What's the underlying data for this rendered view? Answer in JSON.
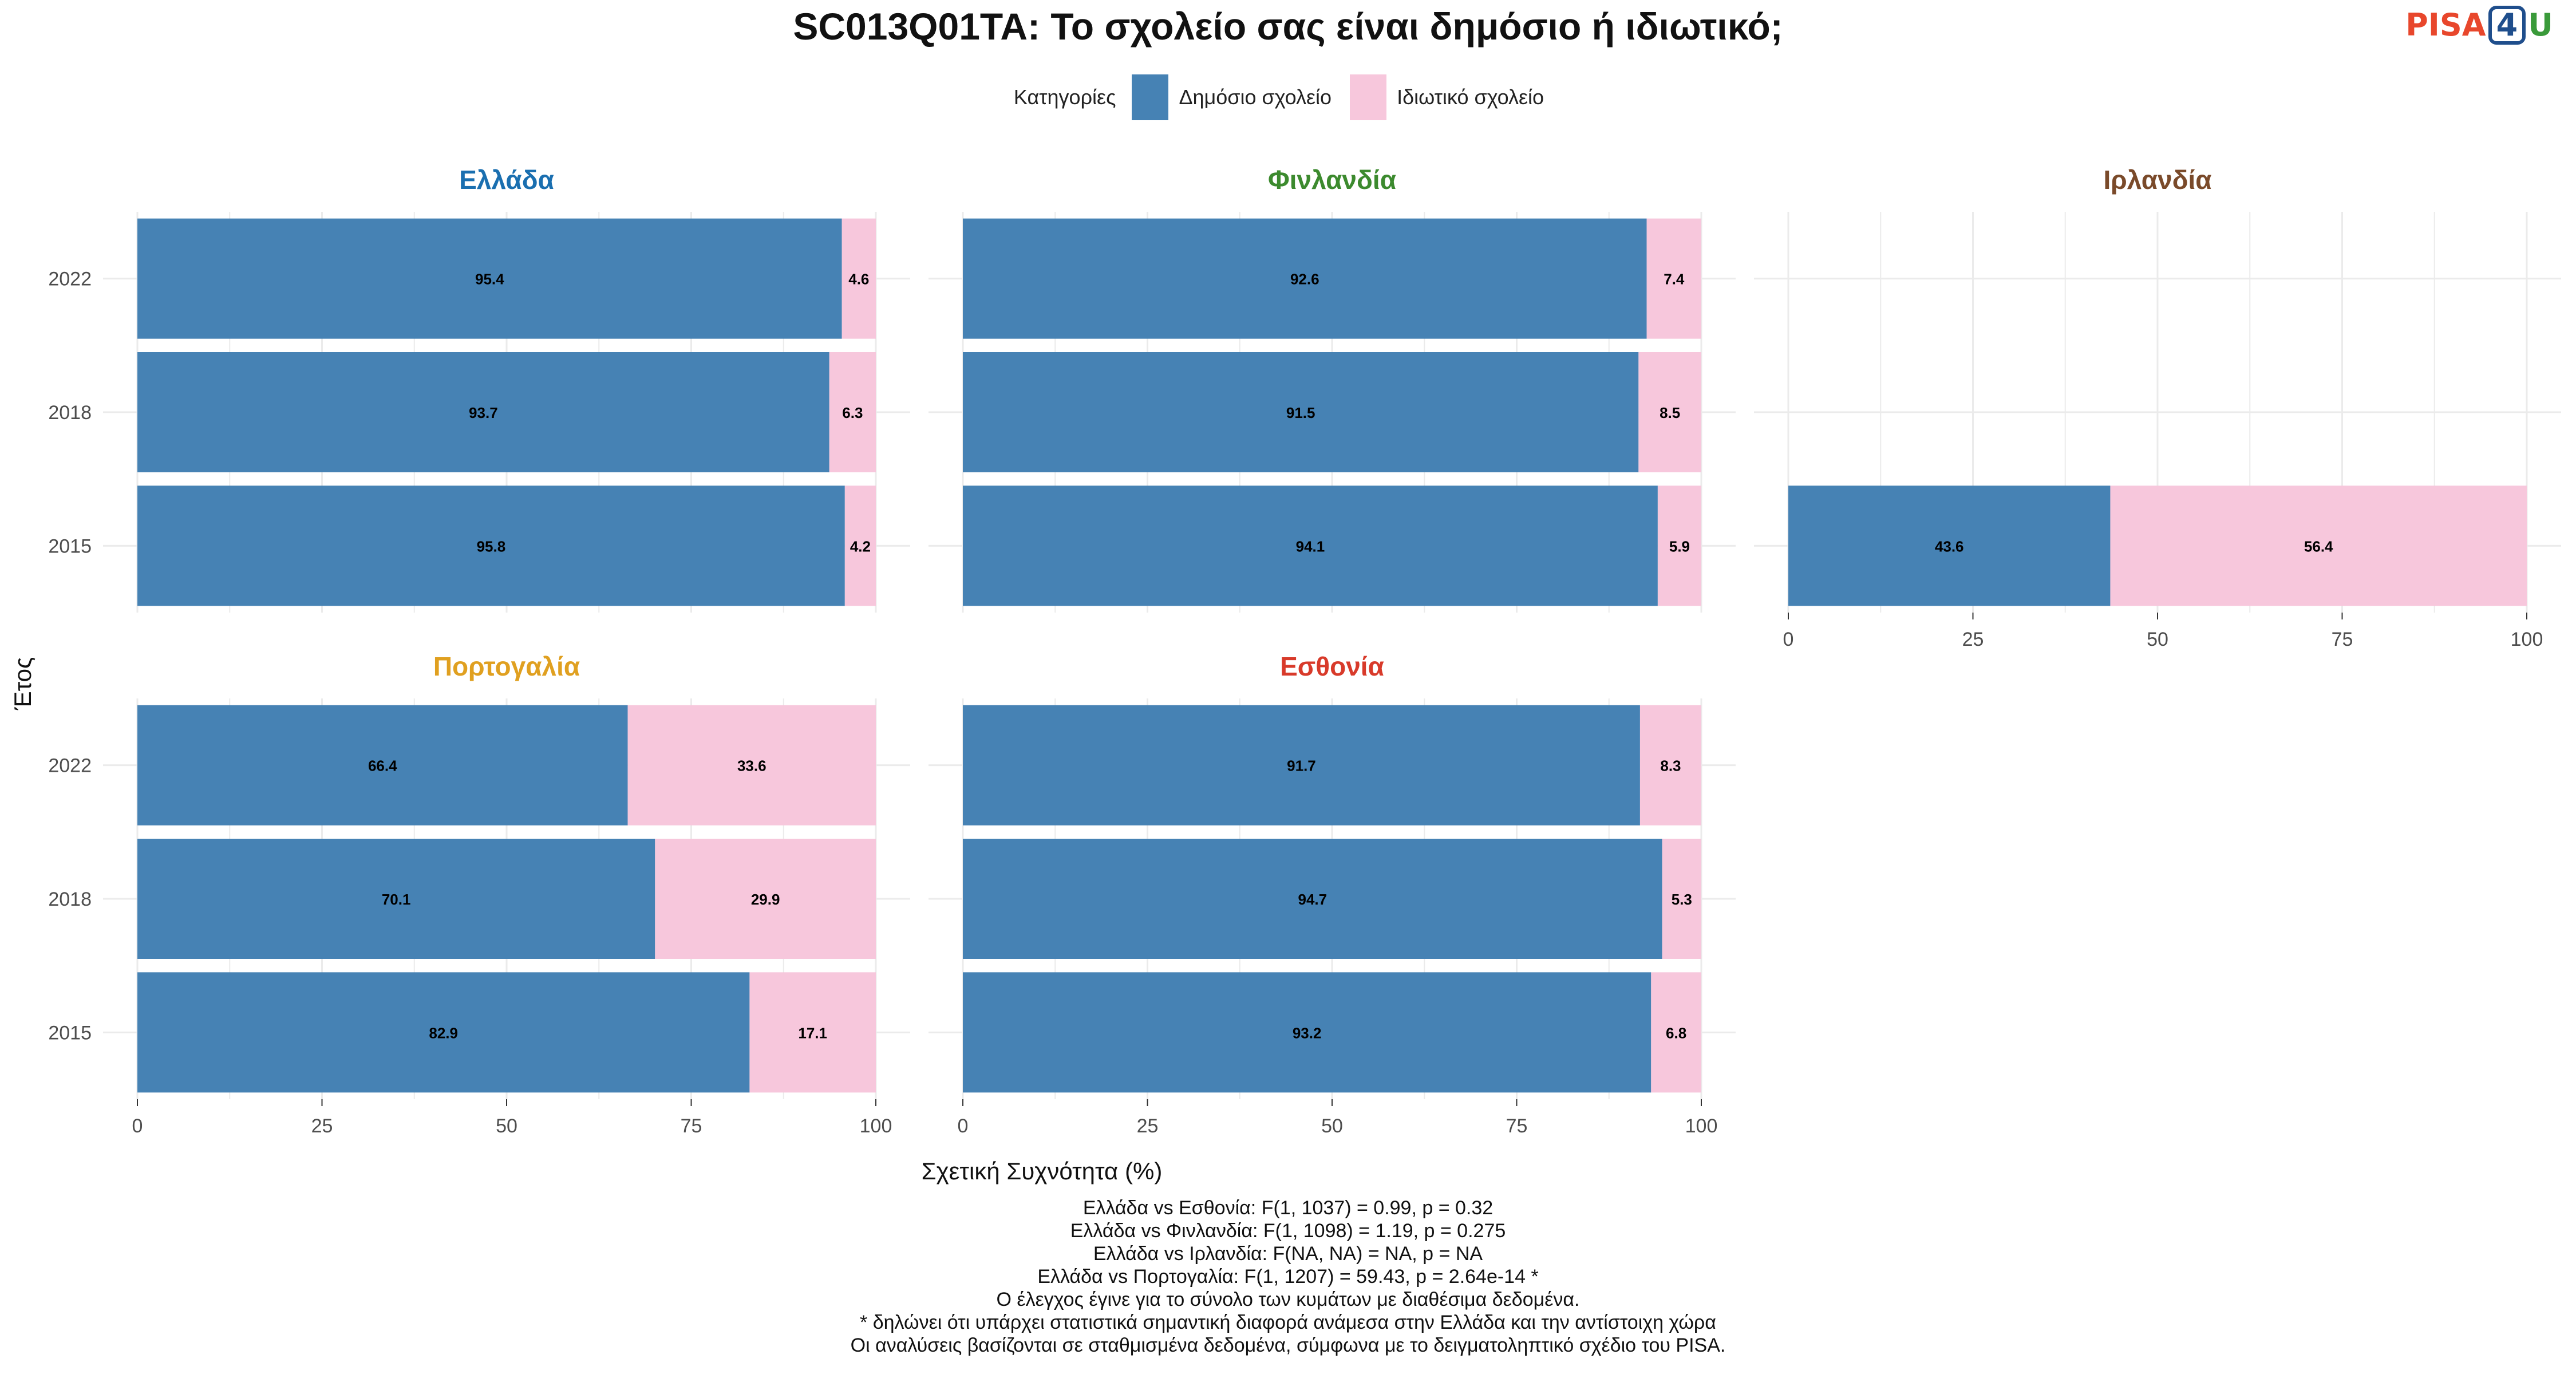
{
  "title": "SC013Q01TA: Το σχολείο σας είναι δημόσιο ή ιδιωτικό;",
  "logo": {
    "part1": "PISA",
    "part2": "4",
    "part3": "U"
  },
  "legend": {
    "title": "Κατηγορίες",
    "items": [
      {
        "label": "Δημόσιο σχολείο",
        "color": "#4682b4"
      },
      {
        "label": "Ιδιωτικό σχολείο",
        "color": "#f7c7dc"
      }
    ]
  },
  "xlabel": "Σχετική Συχνότητα (%)",
  "ylabel": "Έτος",
  "notes": [
    "Ελλάδα vs Εσθονία: F(1, 1037) = 0.99, p = 0.32",
    "Ελλάδα vs Φινλανδία: F(1, 1098) = 1.19, p = 0.275",
    "Ελλάδα vs Ιρλανδία: F(NA, NA) = NA, p = NA",
    "Ελλάδα vs Πορτογαλία: F(1, 1207) = 59.43, p = 2.64e-14 *",
    "Ο έλεγχος έγινε για το σύνολο των κυμάτων με διαθέσιμα δεδομένα.",
    "* δηλώνει ότι υπάρχει στατιστικά σημαντική διαφορά ανάμεσα στην Ελλάδα και την αντίστοιχη χώρα",
    "Οι αναλύσεις βασίζονται σε σταθμισμένα δεδομένα, σύμφωνα με το δειγματοληπτικό σχέδιο του PISA."
  ],
  "chart_data": {
    "type": "bar",
    "orientation": "horizontal-stacked",
    "xlim": [
      0,
      100
    ],
    "xticks": [
      0,
      25,
      50,
      75,
      100
    ],
    "years": [
      "2022",
      "2018",
      "2015"
    ],
    "series_names": [
      "Δημόσιο σχολείο",
      "Ιδιωτικό σχολείο"
    ],
    "panels": [
      {
        "country": "Ελλάδα",
        "color": "#1a6fb0",
        "bars": [
          {
            "year": "2022",
            "values": [
              95.4,
              4.6
            ]
          },
          {
            "year": "2018",
            "values": [
              93.7,
              6.3
            ]
          },
          {
            "year": "2015",
            "values": [
              95.8,
              4.2
            ]
          }
        ]
      },
      {
        "country": "Φινλανδία",
        "color": "#3c8a2e",
        "bars": [
          {
            "year": "2022",
            "values": [
              92.6,
              7.4
            ]
          },
          {
            "year": "2018",
            "values": [
              91.5,
              8.5
            ]
          },
          {
            "year": "2015",
            "values": [
              94.1,
              5.9
            ]
          }
        ]
      },
      {
        "country": "Ιρλανδία",
        "color": "#7a4a2a",
        "bars": [
          {
            "year": "2015",
            "values": [
              43.6,
              56.4
            ]
          }
        ]
      },
      {
        "country": "Πορτογαλία",
        "color": "#e0a020",
        "bars": [
          {
            "year": "2022",
            "values": [
              66.4,
              33.6
            ]
          },
          {
            "year": "2018",
            "values": [
              70.1,
              29.9
            ]
          },
          {
            "year": "2015",
            "values": [
              82.9,
              17.1
            ]
          }
        ]
      },
      {
        "country": "Εσθονία",
        "color": "#d83a2a",
        "bars": [
          {
            "year": "2022",
            "values": [
              91.7,
              8.3
            ]
          },
          {
            "year": "2018",
            "values": [
              94.7,
              5.3
            ]
          },
          {
            "year": "2015",
            "values": [
              93.2,
              6.8
            ]
          }
        ]
      }
    ]
  }
}
